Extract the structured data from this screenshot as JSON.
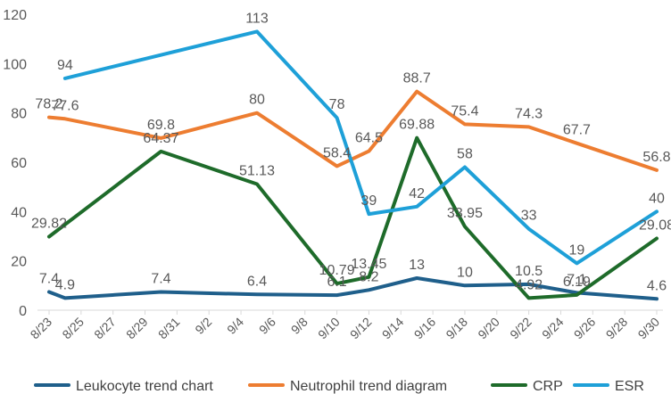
{
  "chart_data": {
    "type": "line",
    "title": "",
    "xlabel": "",
    "ylabel": "",
    "ylim": [
      0,
      120
    ],
    "yticks": [
      0,
      20,
      40,
      60,
      80,
      100,
      120
    ],
    "grid": false,
    "legend_position": "bottom",
    "x_categories": [
      "8/23",
      "8/25",
      "8/27",
      "8/29",
      "8/31",
      "9/2",
      "9/4",
      "9/6",
      "9/8",
      "9/10",
      "9/12",
      "9/14",
      "9/16",
      "9/18",
      "9/20",
      "9/22",
      "9/24",
      "9/26",
      "9/28",
      "9/30"
    ],
    "series": [
      {
        "name": "Leukocyte trend chart",
        "color": "#1f5f8b",
        "points": [
          {
            "x": "8/23",
            "y": 7.4,
            "label": "7.4"
          },
          {
            "x": "8/24",
            "y": 4.9,
            "label": "4.9"
          },
          {
            "x": "8/30",
            "y": 7.4,
            "label": "7.4"
          },
          {
            "x": "9/5",
            "y": 6.4,
            "label": "6.4"
          },
          {
            "x": "9/10",
            "y": 6.1,
            "label": "6.1"
          },
          {
            "x": "9/12",
            "y": 8.2,
            "label": "8.2"
          },
          {
            "x": "9/15",
            "y": 13,
            "label": "13"
          },
          {
            "x": "9/18",
            "y": 10,
            "label": "10"
          },
          {
            "x": "9/22",
            "y": 10.5,
            "label": "10.5"
          },
          {
            "x": "9/25",
            "y": 7.1,
            "label": "7.1"
          },
          {
            "x": "9/30",
            "y": 4.6,
            "label": "4.6"
          }
        ]
      },
      {
        "name": "Neutrophil trend diagram",
        "color": "#ed7d31",
        "points": [
          {
            "x": "8/23",
            "y": 78.2,
            "label": "78.2"
          },
          {
            "x": "8/24",
            "y": 77.6,
            "label": "77.6"
          },
          {
            "x": "8/30",
            "y": 69.8,
            "label": "69.8"
          },
          {
            "x": "9/5",
            "y": 80,
            "label": "80"
          },
          {
            "x": "9/10",
            "y": 58.4,
            "label": "58.4"
          },
          {
            "x": "9/12",
            "y": 64.5,
            "label": "64.5"
          },
          {
            "x": "9/15",
            "y": 88.7,
            "label": "88.7"
          },
          {
            "x": "9/18",
            "y": 75.4,
            "label": "75.4"
          },
          {
            "x": "9/22",
            "y": 74.3,
            "label": "74.3"
          },
          {
            "x": "9/25",
            "y": 67.7,
            "label": "67.7"
          },
          {
            "x": "9/30",
            "y": 56.8,
            "label": "56.8"
          }
        ]
      },
      {
        "name": "CRP",
        "color": "#1e6b2a",
        "points": [
          {
            "x": "8/23",
            "y": 29.82,
            "label": "29.82"
          },
          {
            "x": "8/30",
            "y": 64.37,
            "label": "64.37"
          },
          {
            "x": "9/5",
            "y": 51.13,
            "label": "51.13"
          },
          {
            "x": "9/10",
            "y": 10.79,
            "label": "10.79"
          },
          {
            "x": "9/12",
            "y": 13.45,
            "label": "13.45"
          },
          {
            "x": "9/15",
            "y": 69.88,
            "label": "69.88"
          },
          {
            "x": "9/18",
            "y": 33.95,
            "label": "33.95"
          },
          {
            "x": "9/22",
            "y": 4.92,
            "label": "4.92"
          },
          {
            "x": "9/25",
            "y": 6.19,
            "label": "6.19"
          },
          {
            "x": "9/30",
            "y": 29.08,
            "label": "29.08"
          }
        ]
      },
      {
        "name": "ESR",
        "color": "#1ea0d8",
        "points": [
          {
            "x": "8/24",
            "y": 94,
            "label": "94"
          },
          {
            "x": "9/5",
            "y": 113,
            "label": "113"
          },
          {
            "x": "9/10",
            "y": 78,
            "label": "78"
          },
          {
            "x": "9/12",
            "y": 39,
            "label": "39"
          },
          {
            "x": "9/15",
            "y": 42,
            "label": "42"
          },
          {
            "x": "9/18",
            "y": 58,
            "label": "58"
          },
          {
            "x": "9/22",
            "y": 33,
            "label": "33"
          },
          {
            "x": "9/25",
            "y": 19,
            "label": "19"
          },
          {
            "x": "9/30",
            "y": 40,
            "label": "40"
          }
        ]
      }
    ]
  }
}
